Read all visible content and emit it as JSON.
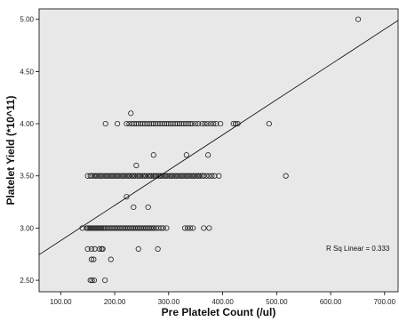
{
  "chart_data": {
    "type": "scatter",
    "title": "",
    "xlabel": "Pre Platelet Count (/ul)",
    "ylabel": "Platelet Yield (*10^11)",
    "xlim": [
      60,
      725
    ],
    "ylim": [
      2.39,
      5.1
    ],
    "xticks": [
      100,
      200,
      300,
      400,
      500,
      600,
      700
    ],
    "xtick_labels": [
      "100.00",
      "200.00",
      "300.00",
      "400.00",
      "500.00",
      "600.00",
      "700.00"
    ],
    "yticks": [
      2.5,
      3.0,
      3.5,
      4.0,
      4.5,
      5.0
    ],
    "ytick_labels": [
      "2.50",
      "3.00",
      "3.50",
      "4.00",
      "4.50",
      "5.00"
    ],
    "grid": false,
    "background": "#e8e8e8",
    "marker_color": "#222222",
    "annotation": "R Sq Linear = 0.333",
    "fit_line": {
      "x": [
        60,
        725
      ],
      "y": [
        2.745,
        4.99
      ]
    },
    "points": [
      [
        140,
        3.0
      ],
      [
        148,
        3.0
      ],
      [
        150,
        3.0
      ],
      [
        153,
        3.0
      ],
      [
        155,
        3.0
      ],
      [
        158,
        3.0
      ],
      [
        160,
        3.0
      ],
      [
        163,
        3.0
      ],
      [
        165,
        3.0
      ],
      [
        168,
        3.0
      ],
      [
        170,
        3.0
      ],
      [
        173,
        3.0
      ],
      [
        175,
        3.0
      ],
      [
        178,
        3.0
      ],
      [
        180,
        3.0
      ],
      [
        183,
        3.0
      ],
      [
        186,
        3.0
      ],
      [
        189,
        3.0
      ],
      [
        192,
        3.0
      ],
      [
        195,
        3.0
      ],
      [
        198,
        3.0
      ],
      [
        201,
        3.0
      ],
      [
        204,
        3.0
      ],
      [
        207,
        3.0
      ],
      [
        210,
        3.0
      ],
      [
        213,
        3.0
      ],
      [
        216,
        3.0
      ],
      [
        219,
        3.0
      ],
      [
        222,
        3.0
      ],
      [
        225,
        3.0
      ],
      [
        228,
        3.0
      ],
      [
        231,
        3.0
      ],
      [
        234,
        3.0
      ],
      [
        237,
        3.0
      ],
      [
        240,
        3.0
      ],
      [
        243,
        3.0
      ],
      [
        246,
        3.0
      ],
      [
        249,
        3.0
      ],
      [
        252,
        3.0
      ],
      [
        255,
        3.0
      ],
      [
        258,
        3.0
      ],
      [
        261,
        3.0
      ],
      [
        264,
        3.0
      ],
      [
        267,
        3.0
      ],
      [
        270,
        3.0
      ],
      [
        273,
        3.0
      ],
      [
        277,
        3.0
      ],
      [
        281,
        3.0
      ],
      [
        286,
        3.0
      ],
      [
        290,
        3.0
      ],
      [
        296,
        3.0
      ],
      [
        330,
        3.0
      ],
      [
        335,
        3.0
      ],
      [
        340,
        3.0
      ],
      [
        345,
        3.0
      ],
      [
        365,
        3.0
      ],
      [
        375,
        3.0
      ],
      [
        150,
        3.5
      ],
      [
        155,
        3.5
      ],
      [
        158,
        3.5
      ],
      [
        162,
        3.5
      ],
      [
        165,
        3.5
      ],
      [
        168,
        3.5
      ],
      [
        172,
        3.5
      ],
      [
        175,
        3.5
      ],
      [
        178,
        3.5
      ],
      [
        182,
        3.5
      ],
      [
        185,
        3.5
      ],
      [
        188,
        3.5
      ],
      [
        192,
        3.5
      ],
      [
        195,
        3.5
      ],
      [
        198,
        3.5
      ],
      [
        202,
        3.5
      ],
      [
        205,
        3.5
      ],
      [
        208,
        3.5
      ],
      [
        212,
        3.5
      ],
      [
        215,
        3.5
      ],
      [
        218,
        3.5
      ],
      [
        222,
        3.5
      ],
      [
        225,
        3.5
      ],
      [
        228,
        3.5
      ],
      [
        232,
        3.5
      ],
      [
        235,
        3.5
      ],
      [
        238,
        3.5
      ],
      [
        242,
        3.5
      ],
      [
        245,
        3.5
      ],
      [
        248,
        3.5
      ],
      [
        252,
        3.5
      ],
      [
        255,
        3.5
      ],
      [
        258,
        3.5
      ],
      [
        262,
        3.5
      ],
      [
        265,
        3.5
      ],
      [
        268,
        3.5
      ],
      [
        272,
        3.5
      ],
      [
        275,
        3.5
      ],
      [
        278,
        3.5
      ],
      [
        282,
        3.5
      ],
      [
        285,
        3.5
      ],
      [
        288,
        3.5
      ],
      [
        292,
        3.5
      ],
      [
        295,
        3.5
      ],
      [
        298,
        3.5
      ],
      [
        302,
        3.5
      ],
      [
        305,
        3.5
      ],
      [
        308,
        3.5
      ],
      [
        312,
        3.5
      ],
      [
        315,
        3.5
      ],
      [
        318,
        3.5
      ],
      [
        322,
        3.5
      ],
      [
        325,
        3.5
      ],
      [
        328,
        3.5
      ],
      [
        332,
        3.5
      ],
      [
        335,
        3.5
      ],
      [
        338,
        3.5
      ],
      [
        342,
        3.5
      ],
      [
        345,
        3.5
      ],
      [
        348,
        3.5
      ],
      [
        352,
        3.5
      ],
      [
        355,
        3.5
      ],
      [
        358,
        3.5
      ],
      [
        362,
        3.5
      ],
      [
        365,
        3.5
      ],
      [
        370,
        3.5
      ],
      [
        375,
        3.5
      ],
      [
        380,
        3.5
      ],
      [
        385,
        3.5
      ],
      [
        393,
        3.5
      ],
      [
        517,
        3.5
      ],
      [
        183,
        4.0
      ],
      [
        205,
        4.0
      ],
      [
        222,
        4.0
      ],
      [
        227,
        4.0
      ],
      [
        232,
        4.0
      ],
      [
        236,
        4.0
      ],
      [
        240,
        4.0
      ],
      [
        244,
        4.0
      ],
      [
        248,
        4.0
      ],
      [
        252,
        4.0
      ],
      [
        256,
        4.0
      ],
      [
        260,
        4.0
      ],
      [
        264,
        4.0
      ],
      [
        268,
        4.0
      ],
      [
        272,
        4.0
      ],
      [
        276,
        4.0
      ],
      [
        280,
        4.0
      ],
      [
        284,
        4.0
      ],
      [
        288,
        4.0
      ],
      [
        292,
        4.0
      ],
      [
        296,
        4.0
      ],
      [
        300,
        4.0
      ],
      [
        304,
        4.0
      ],
      [
        308,
        4.0
      ],
      [
        312,
        4.0
      ],
      [
        316,
        4.0
      ],
      [
        320,
        4.0
      ],
      [
        324,
        4.0
      ],
      [
        328,
        4.0
      ],
      [
        332,
        4.0
      ],
      [
        336,
        4.0
      ],
      [
        340,
        4.0
      ],
      [
        344,
        4.0
      ],
      [
        350,
        4.0
      ],
      [
        355,
        4.0
      ],
      [
        362,
        4.0
      ],
      [
        367,
        4.0
      ],
      [
        372,
        4.0
      ],
      [
        378,
        4.0
      ],
      [
        383,
        4.0
      ],
      [
        388,
        4.0
      ],
      [
        396,
        4.0
      ],
      [
        420,
        4.0
      ],
      [
        424,
        4.0
      ],
      [
        428,
        4.0
      ],
      [
        486,
        4.0
      ],
      [
        230,
        4.1
      ],
      [
        272,
        3.7
      ],
      [
        333,
        3.7
      ],
      [
        373,
        3.7
      ],
      [
        240,
        3.6
      ],
      [
        222,
        3.3
      ],
      [
        235,
        3.2
      ],
      [
        262,
        3.2
      ],
      [
        150,
        2.8
      ],
      [
        157,
        2.8
      ],
      [
        163,
        2.8
      ],
      [
        172,
        2.8
      ],
      [
        176,
        2.8
      ],
      [
        178,
        2.8
      ],
      [
        244,
        2.8
      ],
      [
        280,
        2.8
      ],
      [
        157,
        2.7
      ],
      [
        161,
        2.7
      ],
      [
        193,
        2.7
      ],
      [
        155,
        2.5
      ],
      [
        158,
        2.5
      ],
      [
        162,
        2.5
      ],
      [
        182,
        2.5
      ],
      [
        651,
        5.0
      ]
    ]
  }
}
